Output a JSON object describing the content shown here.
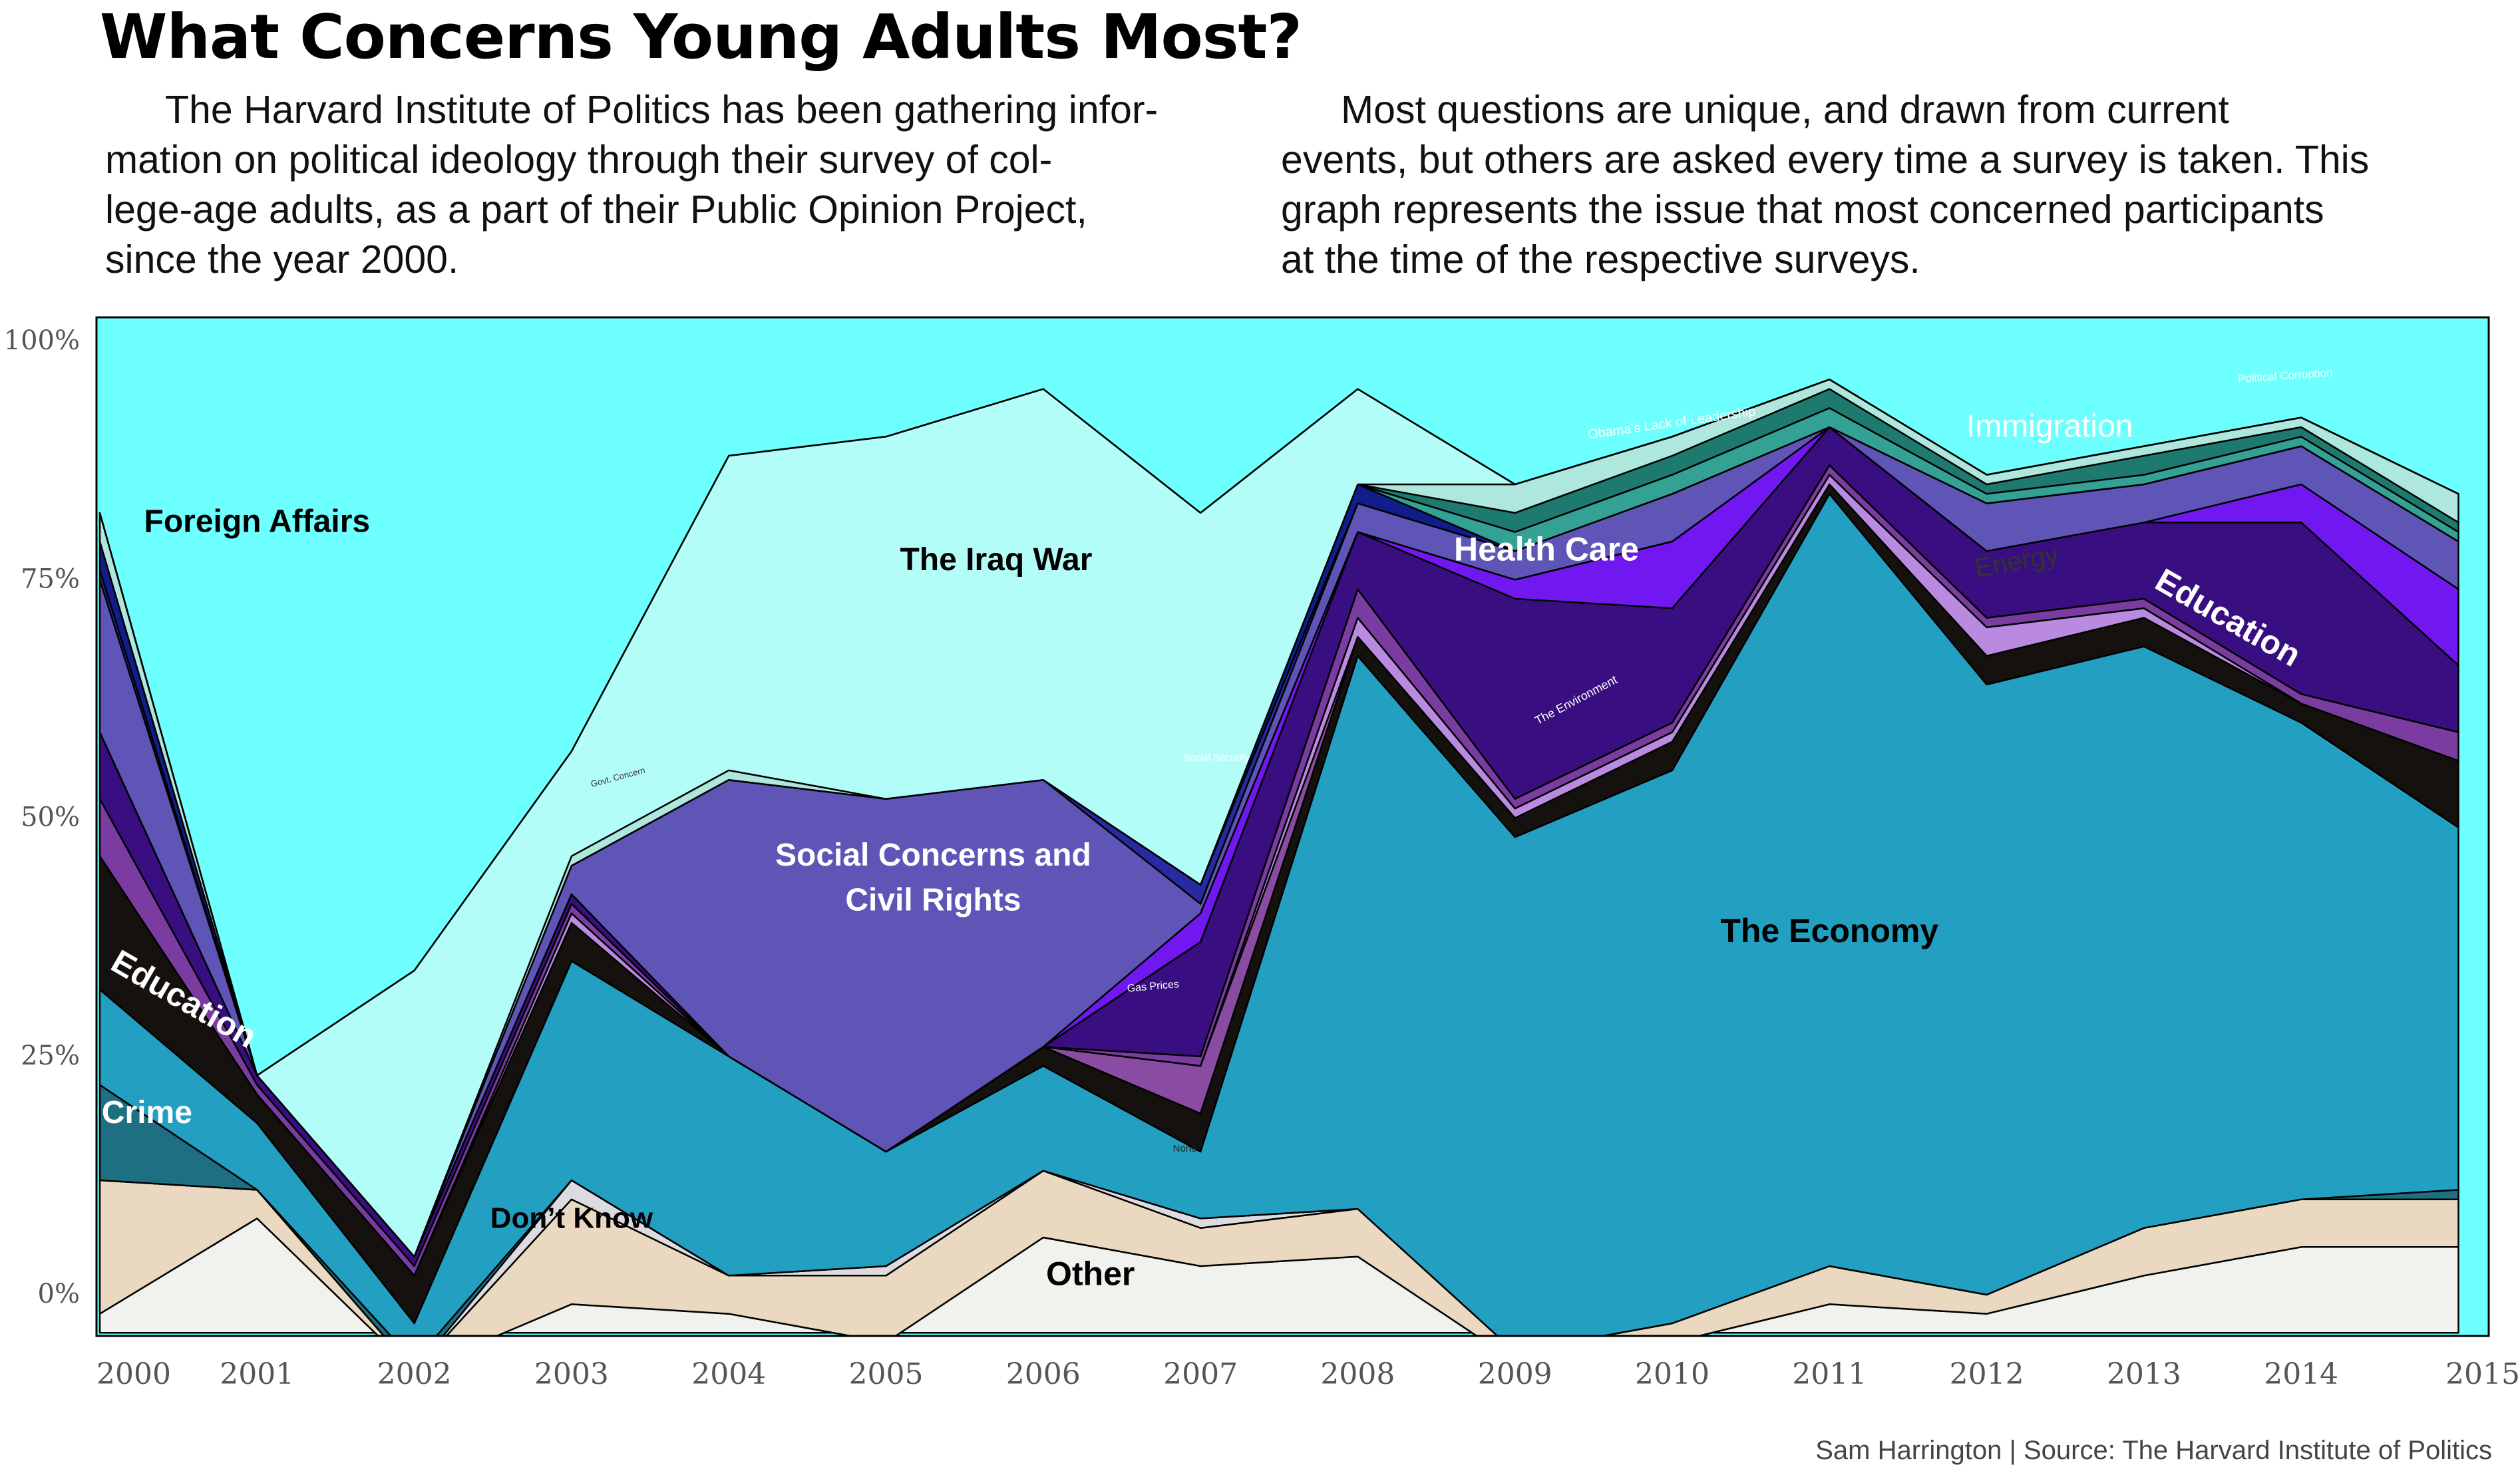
{
  "header": {
    "title": "What Concerns Young Adults Most?",
    "intro_left_lines": [
      "The Harvard Institute of Politics has been gathering infor-",
      "mation on political ideology through their survey of col-",
      "lege-age adults, as a part of their Public Opinion Project,",
      "since the year 2000."
    ],
    "intro_right_lines": [
      "Most questions are unique, and drawn from current",
      "events, but others are asked every time a survey is taken. This",
      "graph represents the issue that most concerned participants",
      "at the time of the respective surveys."
    ]
  },
  "footer": {
    "credit": "Sam Harrington | Source: The Harvard Institute of Politics"
  },
  "chart_data": {
    "type": "area",
    "stacked": true,
    "title": "What Concerns Young Adults Most?",
    "x": [
      "2000",
      "2001",
      "2002",
      "2003",
      "2004",
      "2005",
      "2006",
      "2007",
      "2008",
      "2009",
      "2010",
      "2011",
      "2012",
      "2013",
      "2014",
      "2015"
    ],
    "xlim": [
      2000,
      2015
    ],
    "ylim": [
      -4,
      100
    ],
    "yticks": [
      0,
      25,
      50,
      75,
      100
    ],
    "ytick_labels": [
      "0%",
      "25%",
      "50%",
      "75%",
      "100%"
    ],
    "grid": false,
    "legend": "none (series labeled inside areas)",
    "background_color": "#6effff",
    "series": [
      {
        "name": "Other",
        "color": "#f1f1ee",
        "label": "Other",
        "values": [
          2,
          12,
          -4,
          3,
          2,
          -1,
          10,
          7,
          8,
          -3,
          -1,
          3,
          2,
          6,
          9,
          9
        ]
      },
      {
        "name": "Don't Know",
        "color": "#ead9c0",
        "label": "Don’t Know",
        "values": [
          14,
          3,
          0,
          11,
          4,
          7,
          7,
          4,
          5,
          1,
          2,
          4,
          2,
          5,
          5,
          5
        ]
      },
      {
        "name": "None",
        "color": "#dcdce0",
        "label": "None",
        "values": [
          0,
          0,
          0,
          2,
          0,
          1,
          0,
          1,
          0,
          0,
          0,
          0,
          0,
          0,
          0,
          0
        ]
      },
      {
        "name": "Crime",
        "color": "#1f6f82",
        "label": "Crime",
        "values": [
          10,
          0,
          1,
          0,
          0,
          0,
          0,
          0,
          0,
          0,
          0,
          0,
          0,
          0,
          0,
          1
        ]
      },
      {
        "name": "The Economy",
        "color": "#239fc2",
        "label": "The Economy",
        "values": [
          10,
          7,
          4,
          23,
          23,
          12,
          11,
          7,
          58,
          54,
          58,
          81,
          64,
          61,
          50,
          38
        ]
      },
      {
        "name": "Education",
        "color": "#15110e",
        "label": "Education",
        "values": [
          14,
          3,
          5,
          4,
          0,
          0,
          2,
          4,
          2,
          2,
          3,
          1,
          3,
          3,
          2,
          7
        ]
      },
      {
        "name": "Gas Prices",
        "color": "#8a4ba3",
        "label": "Gas Prices",
        "values": [
          0,
          0,
          0,
          0,
          0,
          0,
          0,
          5,
          0,
          0,
          0,
          0,
          0,
          0,
          0,
          0
        ]
      },
      {
        "name": "Energy",
        "color": "#b98ae0",
        "label": "Energy",
        "values": [
          0,
          0,
          0,
          1,
          0,
          0,
          0,
          0,
          2,
          1,
          1,
          1,
          3,
          1,
          0,
          0
        ]
      },
      {
        "name": "The Environment",
        "color": "#7a3ca0",
        "label": "The Environment",
        "values": [
          6,
          1,
          1,
          1,
          0,
          0,
          0,
          1,
          3,
          1,
          1,
          1,
          1,
          1,
          1,
          3
        ]
      },
      {
        "name": "Health Care",
        "color": "#380e80",
        "label": "Health Care",
        "values": [
          7,
          1,
          1,
          1,
          0,
          0,
          0,
          12,
          6,
          21,
          12,
          4,
          7,
          8,
          18,
          7
        ]
      },
      {
        "name": "Immigration",
        "color": "#7018ef",
        "label": "Immigration",
        "values": [
          0,
          0,
          0,
          0,
          0,
          0,
          0,
          3,
          0,
          2,
          7,
          0,
          0,
          0,
          4,
          8
        ]
      },
      {
        "name": "Social Concerns and Civil Rights",
        "color": "#5e55b6",
        "label": "Social Concerns and Civil Rights",
        "values": [
          16,
          0,
          0,
          3,
          29,
          37,
          28,
          1,
          3,
          3,
          5,
          0,
          5,
          4,
          4,
          5
        ]
      },
      {
        "name": "Social Security",
        "color": "#272aa0",
        "label": "Social Security",
        "values": [
          1,
          0,
          0,
          0,
          0,
          0,
          0,
          2,
          0,
          0,
          0,
          0,
          0,
          0,
          0,
          0
        ]
      },
      {
        "name": "Foreign Affairs minor",
        "color": "#101d8a",
        "label": "",
        "values": [
          3,
          0,
          0,
          0,
          0,
          0,
          0,
          0,
          2,
          0,
          0,
          0,
          0,
          0,
          0,
          0
        ]
      },
      {
        "name": "Obama's Lack of Leadership",
        "color": "#34a195",
        "label": "Obama’s Lack of Leadership",
        "values": [
          0,
          0,
          0,
          0,
          0,
          0,
          0,
          0,
          0,
          2,
          2,
          2,
          1,
          1,
          1,
          1
        ]
      },
      {
        "name": "Political Corruption",
        "color": "#1e7a6e",
        "label": "Political Corruption",
        "values": [
          0,
          0,
          0,
          0,
          0,
          0,
          0,
          0,
          0,
          2,
          2,
          2,
          1,
          2,
          1,
          1
        ]
      },
      {
        "name": "Government Concern",
        "color": "#aee7dd",
        "label": "Govt. Concern",
        "values": [
          3,
          0,
          0,
          1,
          1,
          0,
          0,
          0,
          0,
          3,
          2,
          1,
          1,
          1,
          1,
          3
        ]
      },
      {
        "name": "The Iraq War",
        "color": "#b3fdf9",
        "label": "The Iraq War",
        "values": [
          0,
          0,
          30,
          11,
          33,
          38,
          41,
          39,
          10,
          0,
          0,
          0,
          0,
          0,
          0,
          0
        ]
      },
      {
        "name": "Foreign Affairs",
        "color": "#6effff",
        "label": "Foreign Affairs",
        "values": [
          0,
          0,
          0,
          0,
          0,
          0,
          0,
          0,
          0,
          0,
          0,
          0,
          0,
          0,
          0,
          0
        ]
      }
    ],
    "annotations": [
      {
        "text": "Foreign Affairs",
        "x": "2001",
        "y": 80
      },
      {
        "text": "The Iraq War",
        "x": "2005.7",
        "y": 76
      },
      {
        "text": "Health Care",
        "x": "2009.2",
        "y": 77
      },
      {
        "text": "Immigration",
        "x": "2012.4",
        "y": 90
      },
      {
        "text": "Social Concerns and Civil Rights",
        "x": "2005.3",
        "y": 45
      },
      {
        "text": "The Economy",
        "x": "2011",
        "y": 37
      },
      {
        "text": "Education",
        "x": "2000.5",
        "y": 30
      },
      {
        "text": "Education",
        "x": "2013.5",
        "y": 70
      },
      {
        "text": "Crime",
        "x": "2000.3",
        "y": 18
      },
      {
        "text": "Don’t Know",
        "x": "2003",
        "y": 7
      },
      {
        "text": "Other",
        "x": "2006.3",
        "y": 1
      },
      {
        "text": "Energy",
        "x": "2012.2",
        "y": 76
      },
      {
        "text": "Obama’s Lack of Leadership",
        "x": "2010",
        "y": 91
      },
      {
        "text": "Political Corruption",
        "x": "2013.9",
        "y": 96
      },
      {
        "text": "The Environment",
        "x": "2009.4",
        "y": 62
      },
      {
        "text": "Gas Prices",
        "x": "2006.7",
        "y": 32
      },
      {
        "text": "Social Security",
        "x": "2007.1",
        "y": 56
      },
      {
        "text": "None",
        "x": "2006.9",
        "y": 15
      },
      {
        "text": "Govt. Concern",
        "x": "2003.3",
        "y": 54
      }
    ]
  }
}
